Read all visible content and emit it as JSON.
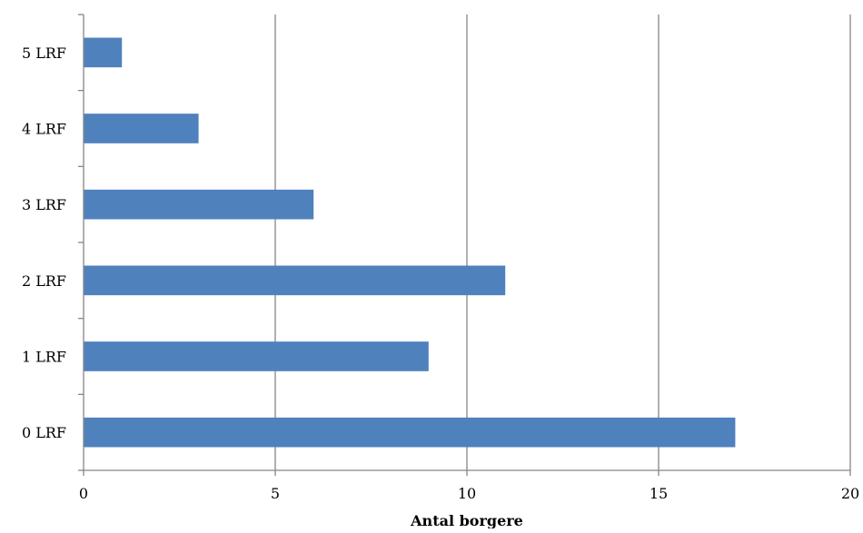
{
  "chart_data": {
    "type": "bar",
    "orientation": "horizontal",
    "categories": [
      "0 LRF",
      "1 LRF",
      "2 LRF",
      "3 LRF",
      "4 LRF",
      "5 LRF"
    ],
    "values": [
      17,
      9,
      11,
      6,
      3,
      1
    ],
    "title": "",
    "xlabel": "Antal borgere",
    "ylabel": "",
    "xlim": [
      0,
      20
    ],
    "x_ticks": [
      "0",
      "5",
      "10",
      "15",
      "20"
    ],
    "grid": "vertical major gridlines",
    "legend": "none",
    "bar_color": "#4F81BD",
    "grid_color": "#868686"
  }
}
